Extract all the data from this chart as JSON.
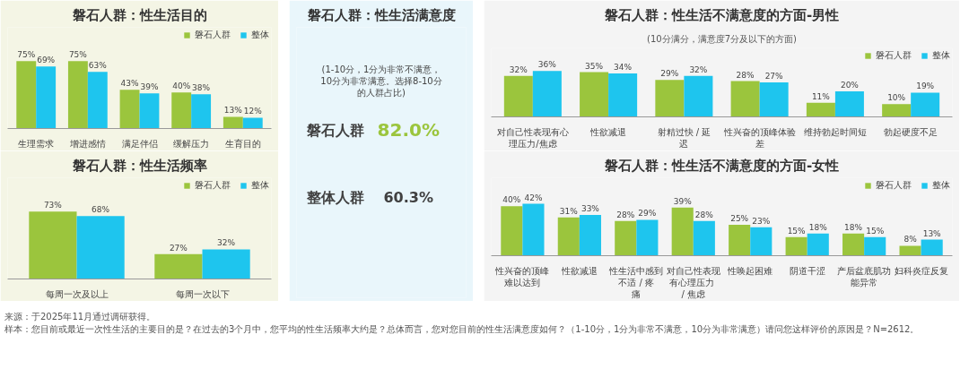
{
  "chart_data": [
    {
      "type": "bar",
      "title": "磐石人群：性生活目的",
      "categories": [
        "生理需求",
        "增进感情",
        "满足伴侣",
        "缓解压力",
        "生育目的"
      ],
      "legend": "top right",
      "series": [
        {
          "name": "磐石人群",
          "color": "#9bc53d",
          "values": [
            75,
            75,
            43,
            40,
            13
          ],
          "value_labels": [
            "75%",
            "75%",
            "43%",
            "40%",
            "13%"
          ]
        },
        {
          "name": "整体",
          "color": "#1ec5ee",
          "values": [
            69,
            63,
            39,
            38,
            12
          ],
          "value_labels": [
            "69%",
            "63%",
            "39%",
            "38%",
            "12%"
          ]
        }
      ]
    },
    {
      "type": "bar",
      "title": "磐石人群：性生活频率",
      "categories": [
        "每周一次及以上",
        "每周一次以下"
      ],
      "legend": "top right",
      "series": [
        {
          "name": "磐石人群",
          "color": "#9bc53d",
          "values": [
            73,
            27
          ],
          "value_labels": [
            "73%",
            "27%"
          ]
        },
        {
          "name": "整体",
          "color": "#1ec5ee",
          "values": [
            68,
            32
          ],
          "value_labels": [
            "68%",
            "32%"
          ]
        }
      ]
    },
    {
      "type": "other",
      "title": "磐石人群：性生活满意度",
      "subtitle": "(1-10分，1分为非常不满意，10分为非常满意。选择8-10分的人群占比)",
      "annotations": [
        "磐石人群",
        "82.0%",
        "整体人群",
        "60.3%"
      ]
    },
    {
      "type": "bar",
      "title": "磐石人群：性生活不满意度的方面-男性",
      "subtitle": "(10分满分，满意度7分及以下的方面)",
      "categories": [
        "对自己性表现有心理压力/焦虑",
        "性欲减退",
        "射精过快 / 延迟",
        "性兴奋的顶峰体验差",
        "维持勃起时间短",
        "勃起硬度不足"
      ],
      "legend": "top right",
      "series": [
        {
          "name": "磐石人群",
          "color": "#9bc53d",
          "values": [
            32,
            35,
            29,
            28,
            11,
            10
          ],
          "value_labels": [
            "32%",
            "35%",
            "29%",
            "28%",
            "11%",
            "10%"
          ]
        },
        {
          "name": "整体",
          "color": "#1ec5ee",
          "values": [
            36,
            34,
            32,
            27,
            20,
            19
          ],
          "value_labels": [
            "36%",
            "34%",
            "32%",
            "27%",
            "20%",
            "19%"
          ]
        }
      ]
    },
    {
      "type": "bar",
      "title": "磐石人群：性生活不满意度的方面-女性",
      "categories": [
        "性兴奋的顶峰难以达到",
        "性欲减退",
        "性生活中感到不适 / 疼痛",
        "对自己性表现有心理压力 / 焦虑",
        "性唤起困难",
        "阴道干涩",
        "产后盆底肌功能异常",
        "妇科炎症反复"
      ],
      "legend": "top right",
      "series": [
        {
          "name": "磐石人群",
          "color": "#9bc53d",
          "values": [
            40,
            31,
            28,
            39,
            25,
            15,
            18,
            8
          ],
          "value_labels": [
            "40%",
            "31%",
            "28%",
            "39%",
            "25%",
            "15%",
            "18%",
            "8%"
          ]
        },
        {
          "name": "整体",
          "color": "#1ec5ee",
          "values": [
            42,
            33,
            29,
            28,
            23,
            18,
            15,
            13
          ],
          "value_labels": [
            "42%",
            "33%",
            "29%",
            "28%",
            "23%",
            "18%",
            "15%",
            "13%"
          ]
        }
      ],
      "annotations": [
        "来源：于2025年11月通过调研获得。",
        "样本：您目前或最近一次性生活的主要目的是？在过去的3个月中，您平均的性生活频率大约是？总体而言，您对您目前的性生活满意度如何？（1-10分，1分为非常不满意，10分为非常满意）请问您这样评价的原因是？N=2612。"
      ]
    }
  ]
}
